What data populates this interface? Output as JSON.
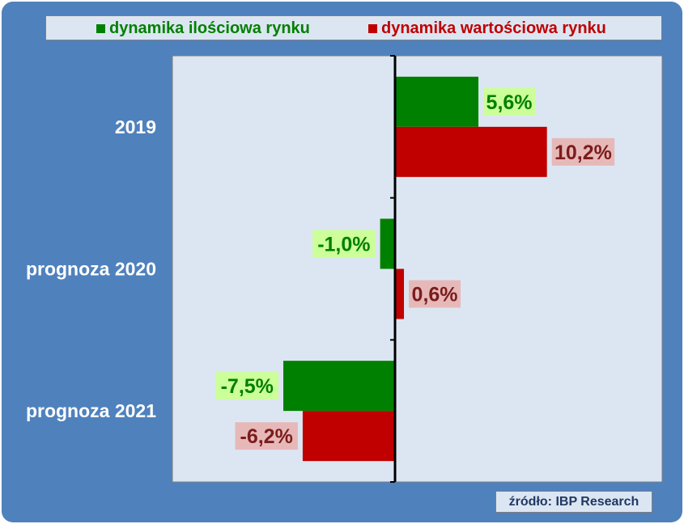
{
  "legend": {
    "series1": "dynamika ilościowa rynku",
    "series2": "dynamika wartościowa rynku"
  },
  "source": "źródło:  IBP Research",
  "colors": {
    "frame": "#4f81bd",
    "plot_background": "#dce6f2",
    "series1": "#008000",
    "series2": "#c00000",
    "series1_label_bg": "#ccff99",
    "series2_label_bg": "#e6b9b8",
    "series1_label_text": "#008000",
    "series2_label_text": "#7b1c1c"
  },
  "chart_data": {
    "type": "bar",
    "orientation": "horizontal",
    "categories": [
      "2019",
      "prognoza 2020",
      "prognoza 2021"
    ],
    "series": [
      {
        "name": "dynamika ilościowa rynku",
        "values": [
          5.6,
          -1.0,
          -7.5
        ],
        "labels": [
          "5,6%",
          "-1,0%",
          "-7,5%"
        ]
      },
      {
        "name": "dynamika wartościowa rynku",
        "values": [
          10.2,
          0.6,
          -6.2
        ],
        "labels": [
          "10,2%",
          "0,6%",
          "-6,2%"
        ]
      }
    ],
    "xlim": [
      -15,
      18
    ],
    "grid": false,
    "legend_position": "top"
  }
}
